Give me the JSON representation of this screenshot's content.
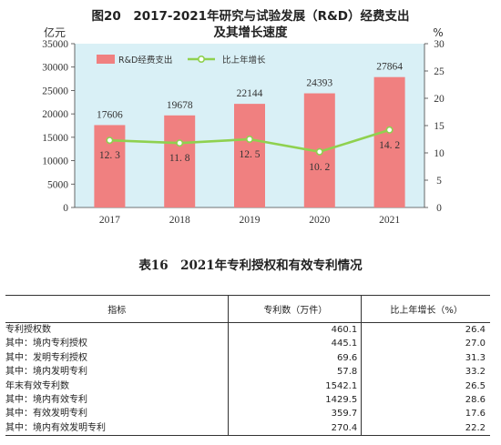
{
  "chart_data": {
    "type": "bar+line",
    "title": "图20　2017-2021年研究与试验发展（R&D）经费支出",
    "subtitle": "及其增长速度",
    "y_left_unit": "亿元",
    "y_right_unit": "%",
    "y_left_range": [
      0,
      35000
    ],
    "y_left_ticks": [
      "0",
      "5000",
      "10000",
      "15000",
      "20000",
      "25000",
      "30000",
      "35000"
    ],
    "y_right_range": [
      0,
      30
    ],
    "y_right_ticks": [
      "0",
      "5",
      "10",
      "15",
      "20",
      "25",
      "30"
    ],
    "categories": [
      "2017",
      "2018",
      "2019",
      "2020",
      "2021"
    ],
    "series": [
      {
        "name": "R&D经费支出",
        "type": "bar",
        "axis": "left",
        "values": [
          17606,
          19678,
          22144,
          24393,
          27864
        ],
        "labels": [
          "17606",
          "19678",
          "22144",
          "24393",
          "27864"
        ],
        "color": "#f08080"
      },
      {
        "name": "比上年增长",
        "type": "line",
        "axis": "right",
        "values": [
          12.3,
          11.8,
          12.5,
          10.2,
          14.2
        ],
        "labels": [
          "12. 3",
          "11. 8",
          "12. 5",
          "10. 2",
          "14. 2"
        ],
        "color": "#8fd14f"
      }
    ],
    "plot_bg": "#d9f0f6",
    "legend_position": "top-left"
  },
  "table": {
    "title": "表16　2021年专利授权和有效专利情况",
    "headers": [
      "指标",
      "专利数（万件）",
      "比上年增长（%）"
    ],
    "rows": [
      {
        "label": "专利授权数",
        "level": 0,
        "count": "460.1",
        "growth": "26.4"
      },
      {
        "label": "其中：境内专利授权",
        "level": 1,
        "count": "445.1",
        "growth": "27.0"
      },
      {
        "label": "其中：发明专利授权",
        "level": 1,
        "count": "69.6",
        "growth": "31.3"
      },
      {
        "label": "其中：境内发明专利",
        "level": 2,
        "count": "57.8",
        "growth": "33.2"
      },
      {
        "label": "年末有效专利数",
        "level": 0,
        "count": "1542.1",
        "growth": "26.5"
      },
      {
        "label": "其中：境内有效专利",
        "level": 1,
        "count": "1429.5",
        "growth": "28.6"
      },
      {
        "label": "其中：有效发明专利",
        "level": 1,
        "count": "359.7",
        "growth": "17.6"
      },
      {
        "label": "其中：境内有效发明专利",
        "level": 2,
        "count": "270.4",
        "growth": "22.2"
      }
    ]
  }
}
